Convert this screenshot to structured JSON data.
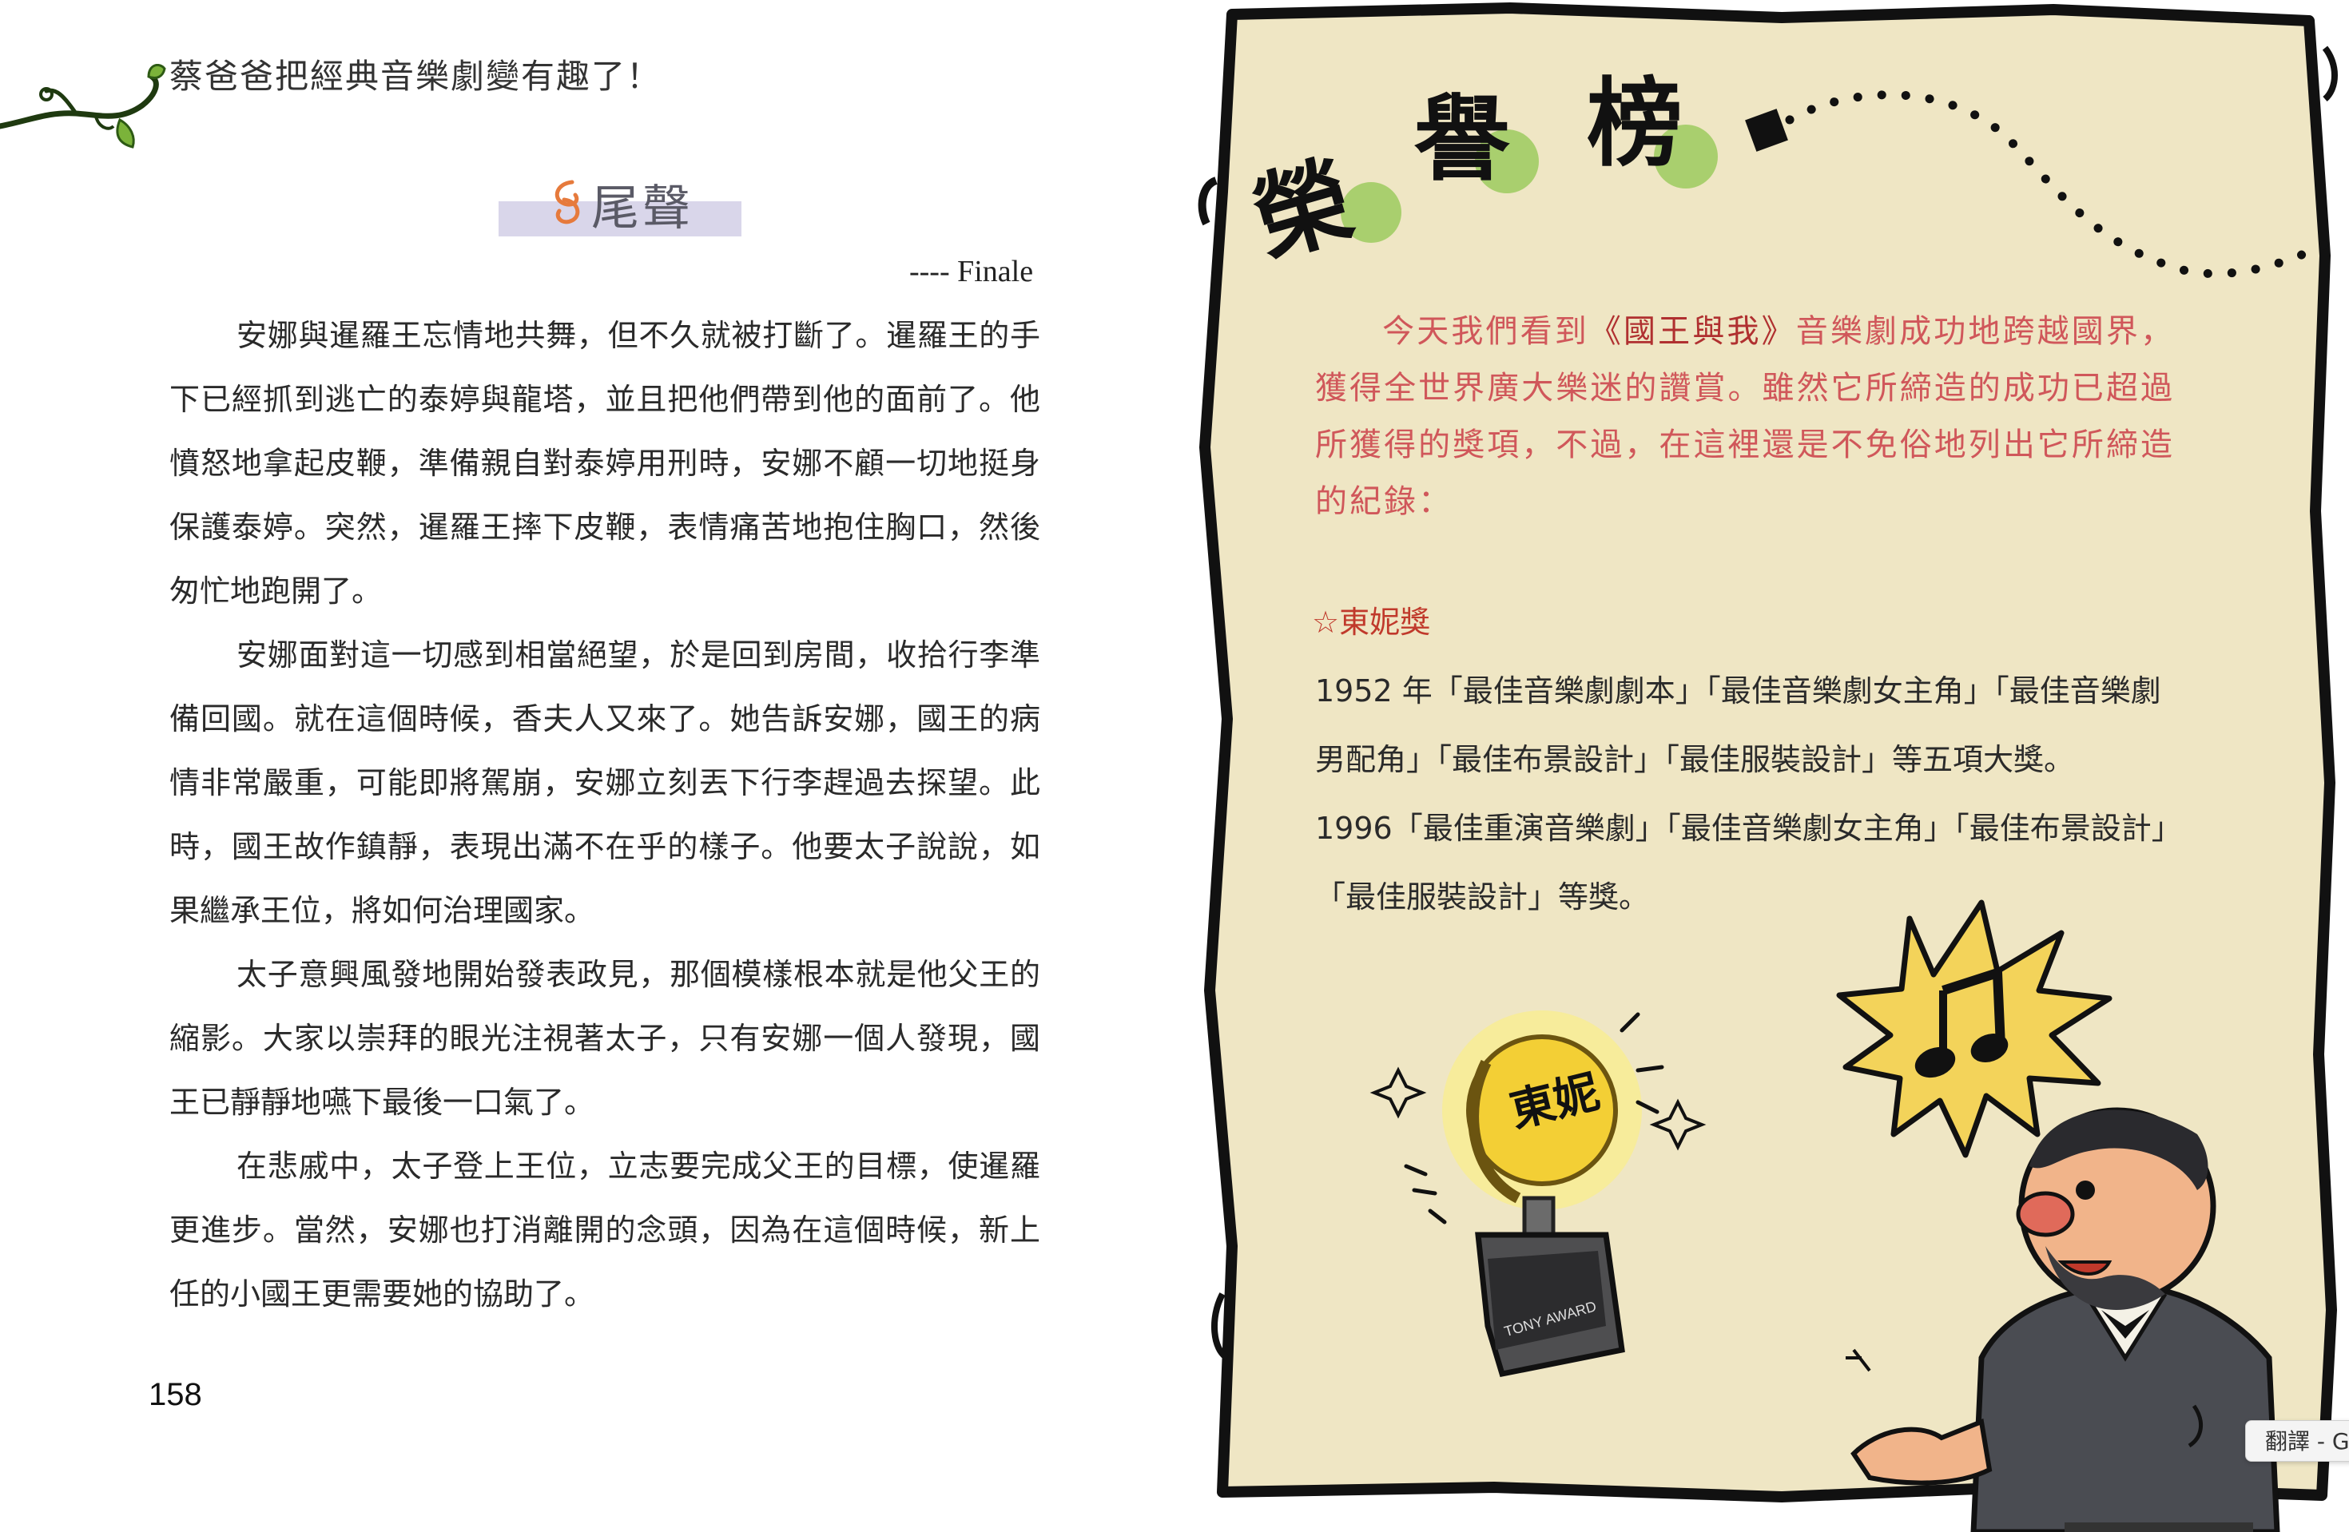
{
  "left_page": {
    "header_title": "蔡爸爸把經典音樂劇變有趣了！",
    "section_title": "尾聲",
    "subtitle": "---- Finale",
    "paragraphs": [
      "安娜與暹羅王忘情地共舞，但不久就被打斷了。暹羅王的手下已經抓到逃亡的泰婷與龍塔，並且把他們帶到他的面前了。他憤怒地拿起皮鞭，準備親自對泰婷用刑時，安娜不顧一切地挺身保護泰婷。突然，暹羅王摔下皮鞭，表情痛苦地抱住胸口，然後匆忙地跑開了。",
      "安娜面對這一切感到相當絕望，於是回到房間，收拾行李準備回國。就在這個時候，香夫人又來了。她告訴安娜，國王的病情非常嚴重，可能即將駕崩，安娜立刻丟下行李趕過去探望。此時，國王故作鎮靜，表現出滿不在乎的樣子。他要太子說說，如果繼承王位，將如何治理國家。",
      "太子意興風發地開始發表政見，那個模樣根本就是他父王的縮影。大家以崇拜的眼光注視著太子，只有安娜一個人發現，國王已靜靜地嚥下最後一口氣了。",
      "在悲戚中，太子登上王位，立志要完成父王的目標，使暹羅更進步。當然，安娜也打消離開的念頭，因為在這個時候，新上任的小國王更需要她的協助了。"
    ],
    "page_number": "158"
  },
  "right_page": {
    "title_chars": [
      "榮",
      "譽",
      "榜"
    ],
    "intro_before": "今天我們看到",
    "intro_book": "《國王與我》",
    "intro_after": "音樂劇成功地跨越國界，獲得全世界廣大樂迷的讚賞。雖然它所締造的成功已超過所獲得的獎項，不過，在這裡還是不免俗地列出它所締造的紀錄：",
    "award_heading": "☆東妮獎",
    "award_lines": [
      "1952 年「最佳音樂劇劇本」「最佳音樂劇女主角」「最佳音樂劇男配角」「最佳布景設計」「最佳服裝設計」等五項大獎。",
      "1996「最佳重演音樂劇」「最佳音樂劇女主角」「最佳布景設計」「最佳服裝設計」等獎。"
    ],
    "trophy_label": "東妮",
    "trophy_plate": "TONY AWARD"
  },
  "translate_chip": "翻譯 - G",
  "colors": {
    "parchment": "#efe6c4",
    "intro_text": "#d0575a",
    "award_heading": "#c0392b",
    "green_dot": "#a9cf6e",
    "banner": "#d9d6ea"
  }
}
